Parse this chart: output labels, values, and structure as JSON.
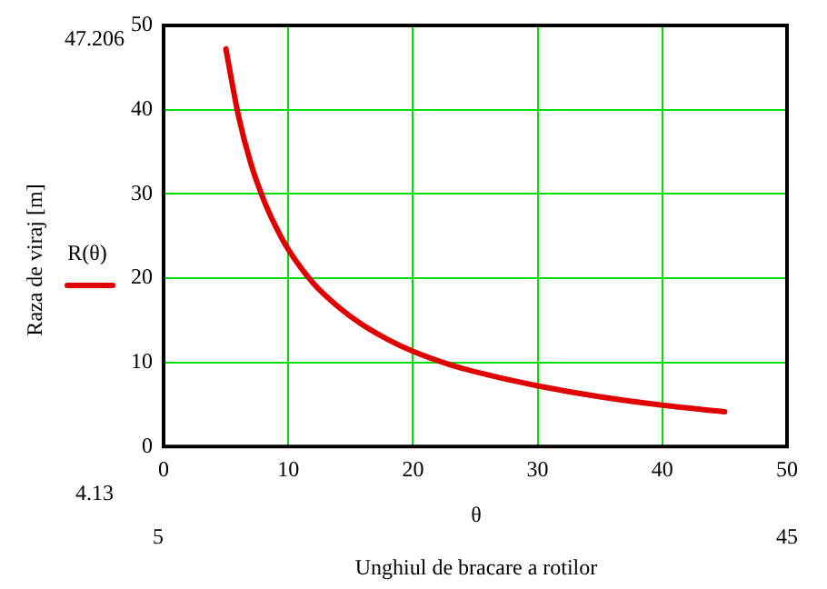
{
  "chart_data": {
    "type": "line",
    "xlabel": "Unghiul de bracare a rotilor",
    "ylabel": "Raza de viraj [m]",
    "annotations": [
      "47.206",
      "4.13",
      "5",
      "45",
      "θ"
    ],
    "x": [
      5,
      6,
      7,
      8,
      9,
      10,
      12,
      14,
      16,
      18,
      20,
      23,
      26,
      30,
      35,
      40,
      45
    ],
    "series": [
      {
        "name": "R(θ)",
        "color": "#e00000",
        "values": [
          47.206,
          39.3,
          33.6,
          29.4,
          26.1,
          23.4,
          19.4,
          16.6,
          14.4,
          12.7,
          11.3,
          9.7,
          8.5,
          7.2,
          5.9,
          4.9,
          4.13
        ]
      }
    ],
    "xlim": [
      0,
      50
    ],
    "ylim": [
      0,
      50
    ],
    "xticks": [
      0,
      10,
      20,
      30,
      40,
      50
    ],
    "yticks": [
      0,
      10,
      20,
      30,
      40,
      50
    ],
    "grid": true,
    "legend": "left",
    "marker": "none",
    "line_style": "solid"
  }
}
